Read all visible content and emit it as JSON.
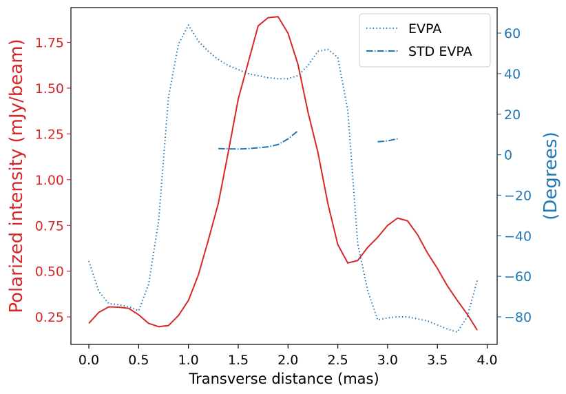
{
  "chart_data": {
    "type": "line",
    "xlabel": "Transverse distance (mas)",
    "ylabel_left": "Polarized intensity (mJy/beam)",
    "ylabel_right": "(Degrees)",
    "xlim": [
      -0.18,
      4.1
    ],
    "ylim_left": [
      0.1,
      1.94
    ],
    "ylim_right": [
      -93.6,
      72.6
    ],
    "x_ticks": [
      0.0,
      0.5,
      1.0,
      1.5,
      2.0,
      2.5,
      3.0,
      3.5,
      4.0
    ],
    "x_tick_labels": [
      "0.0",
      "0.5",
      "1.0",
      "1.5",
      "2.0",
      "2.5",
      "3.0",
      "3.5",
      "4.0"
    ],
    "left_ticks": [
      0.25,
      0.5,
      0.75,
      1.0,
      1.25,
      1.5,
      1.75
    ],
    "left_tick_labels": [
      "0.25",
      "0.50",
      "0.75",
      "1.00",
      "1.25",
      "1.50",
      "1.75"
    ],
    "right_ticks": [
      -80,
      -60,
      -40,
      -20,
      0,
      20,
      40,
      60
    ],
    "right_tick_labels": [
      "−80",
      "−60",
      "−40",
      "−20",
      "0",
      "20",
      "40",
      "60"
    ],
    "grid": false,
    "legend": {
      "position": "top-right"
    },
    "colors": {
      "left_axis": "#d62728",
      "right_axis": "#1f77b4",
      "intensity": "#d62728",
      "evpa": "#1f77b4",
      "std_evpa": "#1f77b4"
    },
    "series": [
      {
        "axis": "left",
        "style": "solid",
        "x": [
          0.0,
          0.1,
          0.2,
          0.3,
          0.4,
          0.5,
          0.6,
          0.7,
          0.8,
          0.9,
          1.0,
          1.1,
          1.2,
          1.3,
          1.4,
          1.5,
          1.6,
          1.7,
          1.8,
          1.9,
          2.0,
          2.1,
          2.2,
          2.3,
          2.4,
          2.5,
          2.6,
          2.7,
          2.8,
          2.9,
          3.0,
          3.1,
          3.2,
          3.3,
          3.4,
          3.5,
          3.6,
          3.7,
          3.8,
          3.9
        ],
        "y": [
          0.215,
          0.275,
          0.305,
          0.303,
          0.297,
          0.262,
          0.215,
          0.197,
          0.203,
          0.258,
          0.34,
          0.48,
          0.67,
          0.87,
          1.15,
          1.44,
          1.64,
          1.84,
          1.885,
          1.89,
          1.8,
          1.63,
          1.37,
          1.15,
          0.87,
          0.645,
          0.545,
          0.558,
          0.63,
          0.685,
          0.75,
          0.79,
          0.775,
          0.7,
          0.6,
          0.515,
          0.42,
          0.34,
          0.265,
          0.178
        ]
      },
      {
        "name": "EVPA",
        "axis": "right",
        "style": "dotted",
        "x": [
          0.0,
          0.1,
          0.2,
          0.3,
          0.4,
          0.5,
          0.6,
          0.7,
          0.8,
          0.9,
          1.0,
          1.1,
          1.2,
          1.3,
          1.4,
          1.5,
          1.6,
          1.7,
          1.8,
          1.9,
          2.0,
          2.1,
          2.2,
          2.3,
          2.4,
          2.5,
          2.6,
          2.7,
          2.8,
          2.9,
          3.0,
          3.1,
          3.2,
          3.3,
          3.4,
          3.5,
          3.6,
          3.7,
          3.8,
          3.9
        ],
        "y": [
          -52.5,
          -67.5,
          -73.5,
          -74.0,
          -75.0,
          -77.0,
          -64.0,
          -33.0,
          28.5,
          54.5,
          64.0,
          56.0,
          51.0,
          47.0,
          44.0,
          42.0,
          40.0,
          39.0,
          38.0,
          37.5,
          37.5,
          39.0,
          44.0,
          51.0,
          52.0,
          48.0,
          22.0,
          -44.0,
          -67.0,
          -81.5,
          -80.5,
          -80.0,
          -80.0,
          -81.0,
          -82.0,
          -84.0,
          -86.0,
          -87.5,
          -80.0,
          -62.0
        ]
      },
      {
        "name": "STD EVPA",
        "axis": "right",
        "style": "dashdot",
        "segments": [
          {
            "x": [
              1.3,
              1.4,
              1.5,
              1.6,
              1.7,
              1.8,
              1.9,
              2.0,
              2.1
            ],
            "y": [
              3.0,
              2.9,
              2.8,
              3.0,
              3.4,
              3.9,
              5.0,
              7.8,
              11.8
            ]
          },
          {
            "x": [
              2.9,
              3.0,
              3.1
            ],
            "y": [
              6.4,
              6.8,
              7.9
            ]
          }
        ]
      }
    ]
  }
}
